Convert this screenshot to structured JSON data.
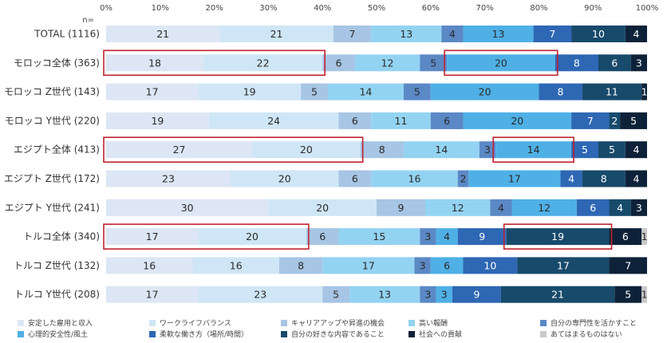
{
  "chart_data": {
    "type": "bar",
    "orientation": "horizontal",
    "stacked": true,
    "percent": true,
    "n_label": "n=",
    "x_ticks": [
      "0%",
      "10%",
      "20%",
      "30%",
      "40%",
      "50%",
      "60%",
      "70%",
      "80%",
      "90%",
      "100%"
    ],
    "xlim": [
      0,
      100
    ],
    "categories": [
      "TOTAL (1116)",
      "モロッコ全体 (363)",
      "モロッコ Z世代 (143)",
      "モロッコ Y世代 (220)",
      "エジプト全体 (413)",
      "エジプト Z世代 (172)",
      "エジプト Y世代 (241)",
      "トルコ全体 (340)",
      "トルコ Z世代 (132)",
      "トルコ Y世代 (208)"
    ],
    "series": [
      {
        "name": "安定した雇用と収入",
        "color": "#dde6f4",
        "values": [
          21,
          18,
          17,
          19,
          27,
          23,
          30,
          17,
          16,
          17
        ]
      },
      {
        "name": "ワークライフバランス",
        "color": "#cfe6f6",
        "values": [
          21,
          22,
          19,
          24,
          20,
          20,
          20,
          20,
          16,
          23
        ]
      },
      {
        "name": "キャリアアップや昇進の機会",
        "color": "#a7c5e4",
        "values": [
          7,
          6,
          5,
          6,
          8,
          6,
          9,
          6,
          8,
          5
        ]
      },
      {
        "name": "高い報酬",
        "color": "#93d3f2",
        "values": [
          13,
          12,
          14,
          11,
          14,
          16,
          12,
          15,
          17,
          13
        ]
      },
      {
        "name": "自分の専門性を活かすこと",
        "color": "#5b89c6",
        "values": [
          4,
          5,
          5,
          6,
          3,
          2,
          4,
          3,
          3,
          3
        ]
      },
      {
        "name": "心理的安全性/風土",
        "color": "#4fb0e6",
        "values": [
          13,
          20,
          20,
          20,
          14,
          17,
          12,
          4,
          6,
          3
        ]
      },
      {
        "name": "柔軟な働き方（場所/時間）",
        "color": "#2e67b4",
        "values": [
          7,
          8,
          8,
          7,
          5,
          4,
          6,
          9,
          10,
          9
        ]
      },
      {
        "name": "自分の好きな内容であること",
        "color": "#174a6b",
        "values": [
          10,
          6,
          11,
          2,
          5,
          8,
          4,
          19,
          17,
          21
        ]
      },
      {
        "name": "社会への貢献",
        "color": "#0d2238",
        "values": [
          4,
          3,
          1,
          5,
          4,
          4,
          3,
          6,
          7,
          5
        ]
      },
      {
        "name": "あてはまるものはない",
        "color": "#c9c9c9",
        "values": [
          0,
          0,
          0,
          0,
          0,
          0,
          0,
          1,
          0,
          1
        ]
      }
    ],
    "labels": [
      [
        "21",
        "21",
        "7",
        "13",
        "4",
        "13",
        "7",
        "10",
        "4",
        ""
      ],
      [
        "18",
        "22",
        "6",
        "12",
        "5",
        "20",
        "8",
        "6",
        "3",
        ""
      ],
      [
        "17",
        "19",
        "5",
        "14",
        "5",
        "20",
        "8",
        "11",
        "1",
        ""
      ],
      [
        "19",
        "24",
        "6",
        "11",
        "6",
        "20",
        "7",
        "2",
        "5",
        ""
      ],
      [
        "27",
        "20",
        "8",
        "14",
        "3",
        "14",
        "5",
        "5",
        "4",
        ""
      ],
      [
        "23",
        "20",
        "6",
        "16",
        "2",
        "17",
        "4",
        "8",
        "4",
        ""
      ],
      [
        "30",
        "20",
        "9",
        "12",
        "4",
        "12",
        "6",
        "4",
        "3",
        ""
      ],
      [
        "17",
        "20",
        "6",
        "15",
        "3",
        "4",
        "9",
        "19",
        "6",
        "1"
      ],
      [
        "16",
        "16",
        "8",
        "17",
        "3",
        "6",
        "10",
        "17",
        "7",
        ""
      ],
      [
        "17",
        "23",
        "5",
        "13",
        "3",
        "3",
        "9",
        "21",
        "5",
        "1"
      ]
    ],
    "highlights": [
      {
        "row": 1,
        "from_series": 0,
        "to_series": 1
      },
      {
        "row": 1,
        "from_series": 5,
        "to_series": 5
      },
      {
        "row": 4,
        "from_series": 0,
        "to_series": 1
      },
      {
        "row": 4,
        "from_series": 5,
        "to_series": 5
      },
      {
        "row": 7,
        "from_series": 0,
        "to_series": 1
      },
      {
        "row": 7,
        "from_series": 7,
        "to_series": 7
      }
    ],
    "highlight_color": "#c0222f",
    "grid": false,
    "legend_position": "bottom"
  }
}
